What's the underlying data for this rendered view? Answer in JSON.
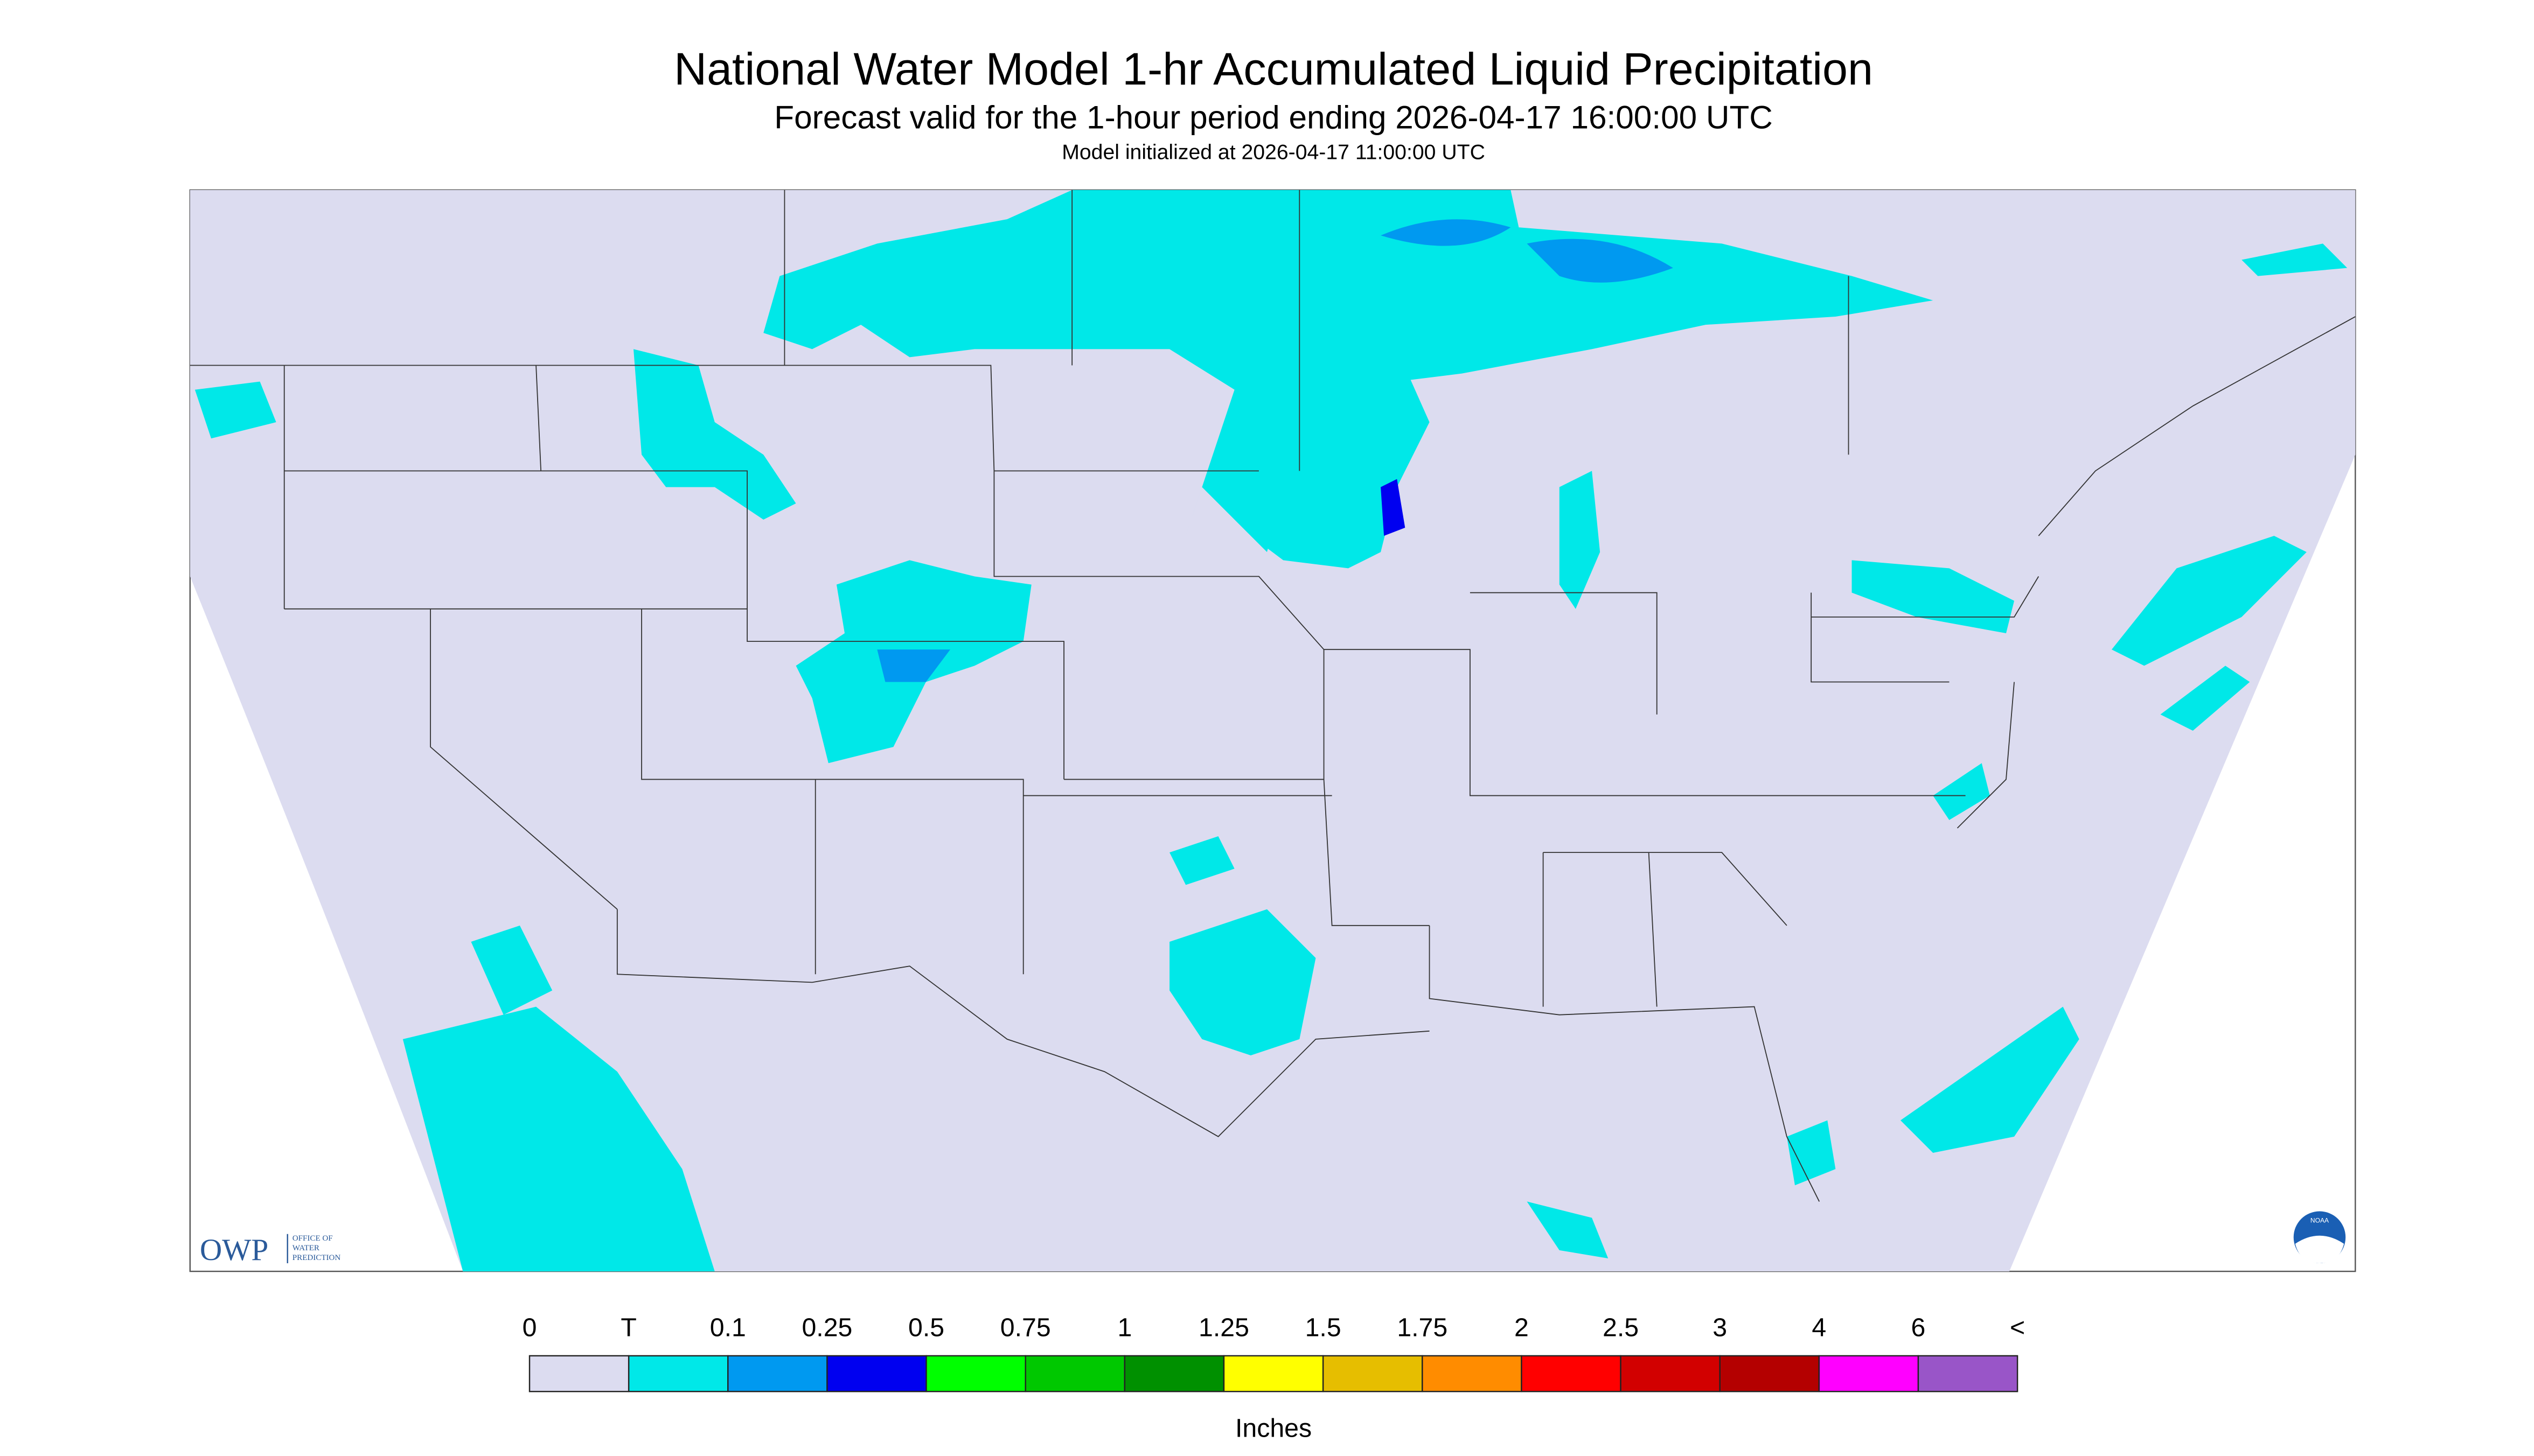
{
  "header": {
    "title": "National Water Model 1-hr Accumulated Liquid Precipitation",
    "subtitle": "Forecast valid for the 1-hour period ending 2026-04-17 16:00:00 UTC",
    "initialized": "Model initialized at 2026-04-17 11:00:00 UTC"
  },
  "logo": {
    "acronym": "OWP",
    "lines": [
      "OFFICE OF",
      "WATER",
      "PREDICTION"
    ],
    "noaa": "NOAA"
  },
  "legend": {
    "unit": "Inches",
    "labels": [
      "0",
      "T",
      "0.1",
      "0.25",
      "0.5",
      "0.75",
      "1",
      "1.25",
      "1.5",
      "1.75",
      "2",
      "2.5",
      "3",
      "4",
      "6",
      "<"
    ],
    "colors": [
      "#dcdcf0",
      "#00e8e8",
      "#0099f0",
      "#0000f0",
      "#00ff00",
      "#00c800",
      "#009000",
      "#ffff00",
      "#e6be00",
      "#ff8c00",
      "#ff0000",
      "#d20000",
      "#b40000",
      "#ff00ff",
      "#9955c8"
    ]
  }
}
